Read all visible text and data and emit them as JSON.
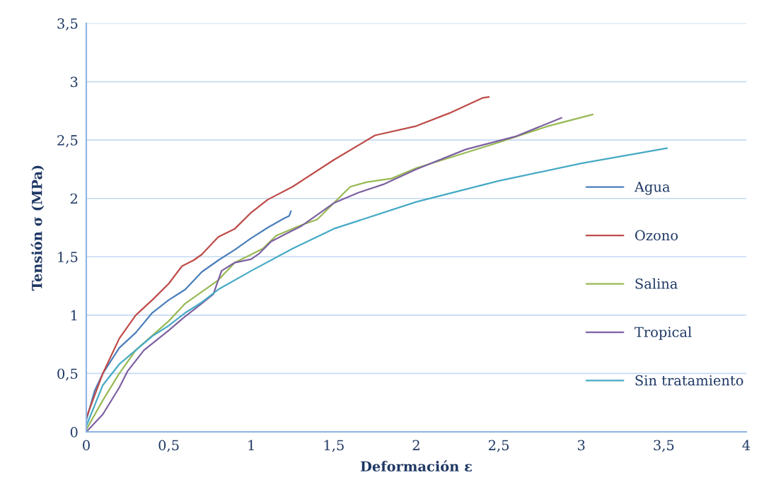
{
  "chart_data": {
    "type": "line",
    "xlabel": "Deformación ε",
    "ylabel": "Tensión σ (MPa)",
    "xlim": [
      0,
      4
    ],
    "ylim": [
      0,
      3.5
    ],
    "xticks": [
      0,
      {
        "value": 0.5,
        "label": "0,5"
      },
      1,
      {
        "value": 1.5,
        "label": "1,5"
      },
      2,
      {
        "value": 2.5,
        "label": "2,5"
      },
      3,
      {
        "value": 3.5,
        "label": "3,5"
      },
      4
    ],
    "yticks": [
      0,
      {
        "value": 0.5,
        "label": "0,5"
      },
      1,
      {
        "value": 1.5,
        "label": "1,5"
      },
      2,
      {
        "value": 2.5,
        "label": "2,5"
      },
      3,
      {
        "value": 3.5,
        "label": "3,5"
      }
    ],
    "grid": "y",
    "legend": "right",
    "marker": "none",
    "line_style": "solid",
    "series": [
      {
        "name": "Agua",
        "color": "#4a7ebb",
        "x": [
          0,
          0.05,
          0.1,
          0.2,
          0.3,
          0.4,
          0.5,
          0.6,
          0.7,
          0.8,
          0.9,
          1.0,
          1.1,
          1.2,
          1.23,
          1.24
        ],
        "values": [
          0.1,
          0.35,
          0.5,
          0.72,
          0.85,
          1.02,
          1.13,
          1.22,
          1.37,
          1.47,
          1.56,
          1.66,
          1.75,
          1.83,
          1.85,
          1.89
        ]
      },
      {
        "name": "Ozono",
        "color": "#be4b48",
        "x": [
          0,
          0.1,
          0.2,
          0.3,
          0.4,
          0.5,
          0.58,
          0.65,
          0.7,
          0.8,
          0.9,
          1.0,
          1.1,
          1.25,
          1.5,
          1.75,
          2.0,
          2.2,
          2.4,
          2.44
        ],
        "values": [
          0.12,
          0.5,
          0.8,
          1.0,
          1.13,
          1.27,
          1.42,
          1.47,
          1.52,
          1.67,
          1.74,
          1.88,
          1.99,
          2.1,
          2.33,
          2.54,
          2.62,
          2.73,
          2.86,
          2.87
        ]
      },
      {
        "name": "Salina",
        "color": "#98b954",
        "x": [
          0,
          0.1,
          0.2,
          0.3,
          0.5,
          0.6,
          0.8,
          0.9,
          1.0,
          1.07,
          1.15,
          1.3,
          1.4,
          1.5,
          1.6,
          1.7,
          1.85,
          2.0,
          2.5,
          2.8,
          3.07
        ],
        "values": [
          0.02,
          0.27,
          0.5,
          0.7,
          0.95,
          1.1,
          1.3,
          1.45,
          1.52,
          1.57,
          1.68,
          1.77,
          1.82,
          1.96,
          2.1,
          2.14,
          2.17,
          2.26,
          2.48,
          2.62,
          2.72
        ]
      },
      {
        "name": "Tropical",
        "color": "#7d60a0",
        "x": [
          0,
          0.1,
          0.2,
          0.25,
          0.35,
          0.5,
          0.6,
          0.7,
          0.77,
          0.82,
          0.9,
          1.0,
          1.05,
          1.12,
          1.2,
          1.3,
          1.5,
          1.65,
          1.8,
          2.0,
          2.3,
          2.6,
          2.88
        ],
        "values": [
          0,
          0.15,
          0.38,
          0.52,
          0.7,
          0.87,
          0.99,
          1.1,
          1.18,
          1.38,
          1.45,
          1.48,
          1.53,
          1.63,
          1.69,
          1.76,
          1.96,
          2.05,
          2.12,
          2.25,
          2.42,
          2.53,
          2.69
        ]
      },
      {
        "name": "Sin tratamiento",
        "color": "#46aac5",
        "x": [
          0,
          0.1,
          0.2,
          0.3,
          0.4,
          0.5,
          0.6,
          0.7,
          0.8,
          1.0,
          1.25,
          1.5,
          2.0,
          2.5,
          3.0,
          3.52
        ],
        "values": [
          0.05,
          0.4,
          0.58,
          0.7,
          0.82,
          0.91,
          1.02,
          1.11,
          1.22,
          1.38,
          1.57,
          1.74,
          1.97,
          2.15,
          2.3,
          2.43
        ]
      }
    ]
  }
}
